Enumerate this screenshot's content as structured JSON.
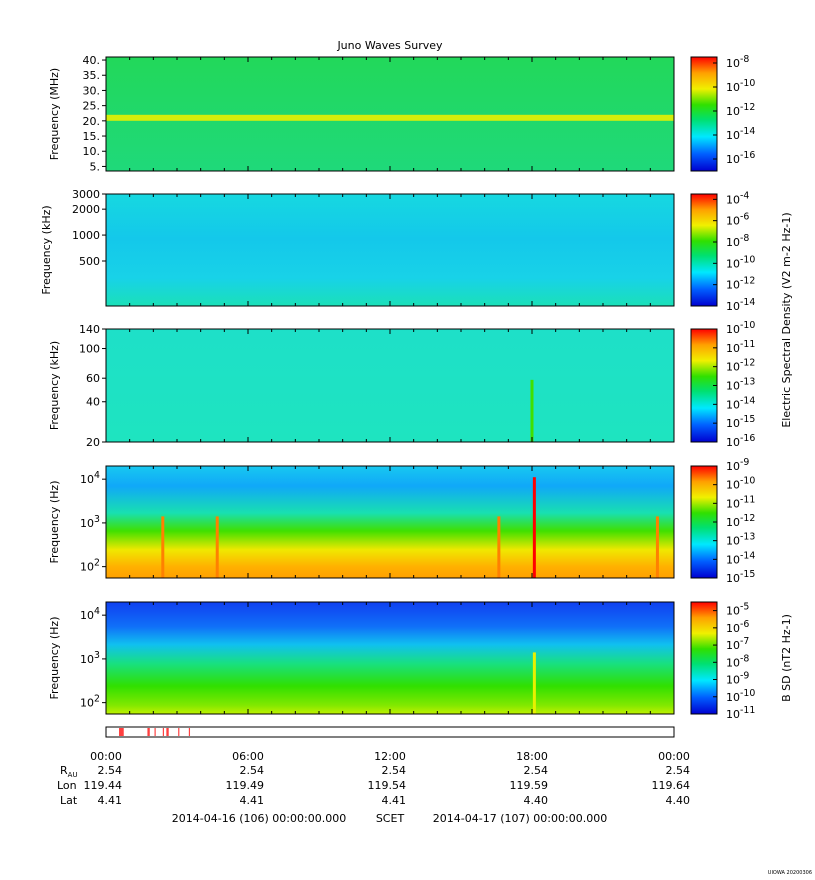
{
  "title": "Juno Waves Survey",
  "watermark": "UIOWA 20200306",
  "scet_label": "SCET",
  "start_label": "2014-04-16 (106) 00:00:00.000",
  "end_label": "2014-04-17 (107) 00:00:00.000",
  "chart_data": [
    {
      "type": "heatmap",
      "ylabel": "Frequency (MHz)",
      "yscale": "linear",
      "ylim": [
        3.5,
        41
      ],
      "yticks": [
        5,
        10,
        15,
        20,
        25,
        30,
        35,
        40
      ],
      "yticklabels": [
        "5.",
        "10.",
        "15.",
        "20.",
        "25.",
        "30.",
        "35.",
        "40."
      ],
      "background": "green",
      "features": [
        {
          "kind": "band",
          "y": 21,
          "color": "yellow"
        }
      ],
      "colorbar": {
        "min_exp": -17,
        "max_exp": -7.5,
        "ticks": [
          -16,
          -14,
          -12,
          -10,
          -8
        ],
        "labels": [
          "10-16",
          "10-14",
          "10-12",
          "10-10",
          "10-8"
        ]
      }
    },
    {
      "type": "heatmap",
      "ylabel": "Frequency (kHz)",
      "yscale": "log",
      "ylim": [
        150,
        3000
      ],
      "yticks": [
        500,
        1000,
        2000,
        3000
      ],
      "yticklabels": [
        "500",
        "1000",
        "2000",
        "3000"
      ],
      "background": "cyan",
      "colorbar": {
        "min_exp": -14,
        "max_exp": -3.5,
        "ticks": [
          -14,
          -12,
          -10,
          -8,
          -6,
          -4
        ],
        "labels": [
          "10-14",
          "10-12",
          "10-10",
          "10-8",
          "10-6",
          "10-4"
        ],
        "label": "Electric Spectral Density (V2 m-2 Hz-1)"
      }
    },
    {
      "type": "heatmap",
      "ylabel": "Frequency (kHz)",
      "yscale": "log",
      "ylim": [
        20,
        140
      ],
      "yticks": [
        20,
        40,
        60,
        100,
        140
      ],
      "yticklabels": [
        "20",
        "40",
        "60",
        "100",
        "140"
      ],
      "background": "cyan",
      "features": [
        {
          "kind": "spike",
          "x_hours": 18.0,
          "color": "green"
        }
      ],
      "colorbar": {
        "min_exp": -16,
        "max_exp": -10,
        "ticks": [
          -16,
          -15,
          -14,
          -13,
          -12,
          -11,
          -10
        ],
        "labels": [
          "10-16",
          "10-15",
          "10-14",
          "10-13",
          "10-12",
          "10-11",
          "10-10"
        ]
      }
    },
    {
      "type": "heatmap",
      "ylabel": "Frequency (Hz)",
      "yscale": "log",
      "ylim": [
        55,
        20000
      ],
      "yticks": [
        100,
        1000,
        10000
      ],
      "yticklabels": [
        "10^2",
        "10^3",
        "10^4"
      ],
      "background": "gradient",
      "features": [
        {
          "kind": "spike",
          "x_hours": 18.1,
          "color": "red"
        },
        {
          "kind": "spike",
          "x_hours": 16.6,
          "color": "orange"
        },
        {
          "kind": "spike",
          "x_hours": 23.3,
          "color": "orange"
        },
        {
          "kind": "spike",
          "x_hours": 2.4,
          "color": "orange"
        },
        {
          "kind": "spike",
          "x_hours": 4.7,
          "color": "orange"
        }
      ],
      "colorbar": {
        "min_exp": -15,
        "max_exp": -9,
        "ticks": [
          -15,
          -14,
          -13,
          -12,
          -11,
          -10,
          -9
        ],
        "labels": [
          "10-15",
          "10-14",
          "10-13",
          "10-12",
          "10-11",
          "10-10",
          "10-9"
        ]
      }
    },
    {
      "type": "heatmap",
      "ylabel": "Frequency (Hz)",
      "yscale": "log",
      "ylim": [
        55,
        20000
      ],
      "yticks": [
        100,
        1000,
        10000
      ],
      "yticklabels": [
        "10^2",
        "10^3",
        "10^4"
      ],
      "background": "gradient-b",
      "features": [
        {
          "kind": "spike",
          "x_hours": 18.1,
          "color": "yellow"
        }
      ],
      "colorbar": {
        "min_exp": -11,
        "max_exp": -4.5,
        "ticks": [
          -11,
          -10,
          -9,
          -8,
          -7,
          -6,
          -5
        ],
        "labels": [
          "10-11",
          "10-10",
          "10-9",
          "10-8",
          "10-7",
          "10-6",
          "10-5"
        ],
        "label": "B SD (nT2 Hz-1)"
      }
    }
  ],
  "mode_bar": {
    "red_segments_hours": [
      [
        0.55,
        0.75
      ],
      [
        1.75,
        1.85
      ],
      [
        2.05,
        2.1
      ],
      [
        2.4,
        2.45
      ],
      [
        2.55,
        2.65
      ],
      [
        3.05,
        3.1
      ],
      [
        3.5,
        3.55
      ]
    ]
  },
  "x_axis": {
    "tick_hours": [
      0,
      6,
      12,
      18,
      24
    ],
    "tick_labels": [
      "00:00",
      "06:00",
      "12:00",
      "18:00",
      "00:00"
    ]
  },
  "ephemeris": {
    "row_labels": [
      "R",
      "Lon",
      "Lat"
    ],
    "r_subscript": "AU",
    "columns": [
      {
        "r": "2.54",
        "lon": "119.44",
        "lat": "4.41"
      },
      {
        "r": "2.54",
        "lon": "119.49",
        "lat": "4.41"
      },
      {
        "r": "2.54",
        "lon": "119.54",
        "lat": "4.41"
      },
      {
        "r": "2.54",
        "lon": "119.59",
        "lat": "4.40"
      },
      {
        "r": "2.54",
        "lon": "119.64",
        "lat": "4.40"
      }
    ]
  }
}
